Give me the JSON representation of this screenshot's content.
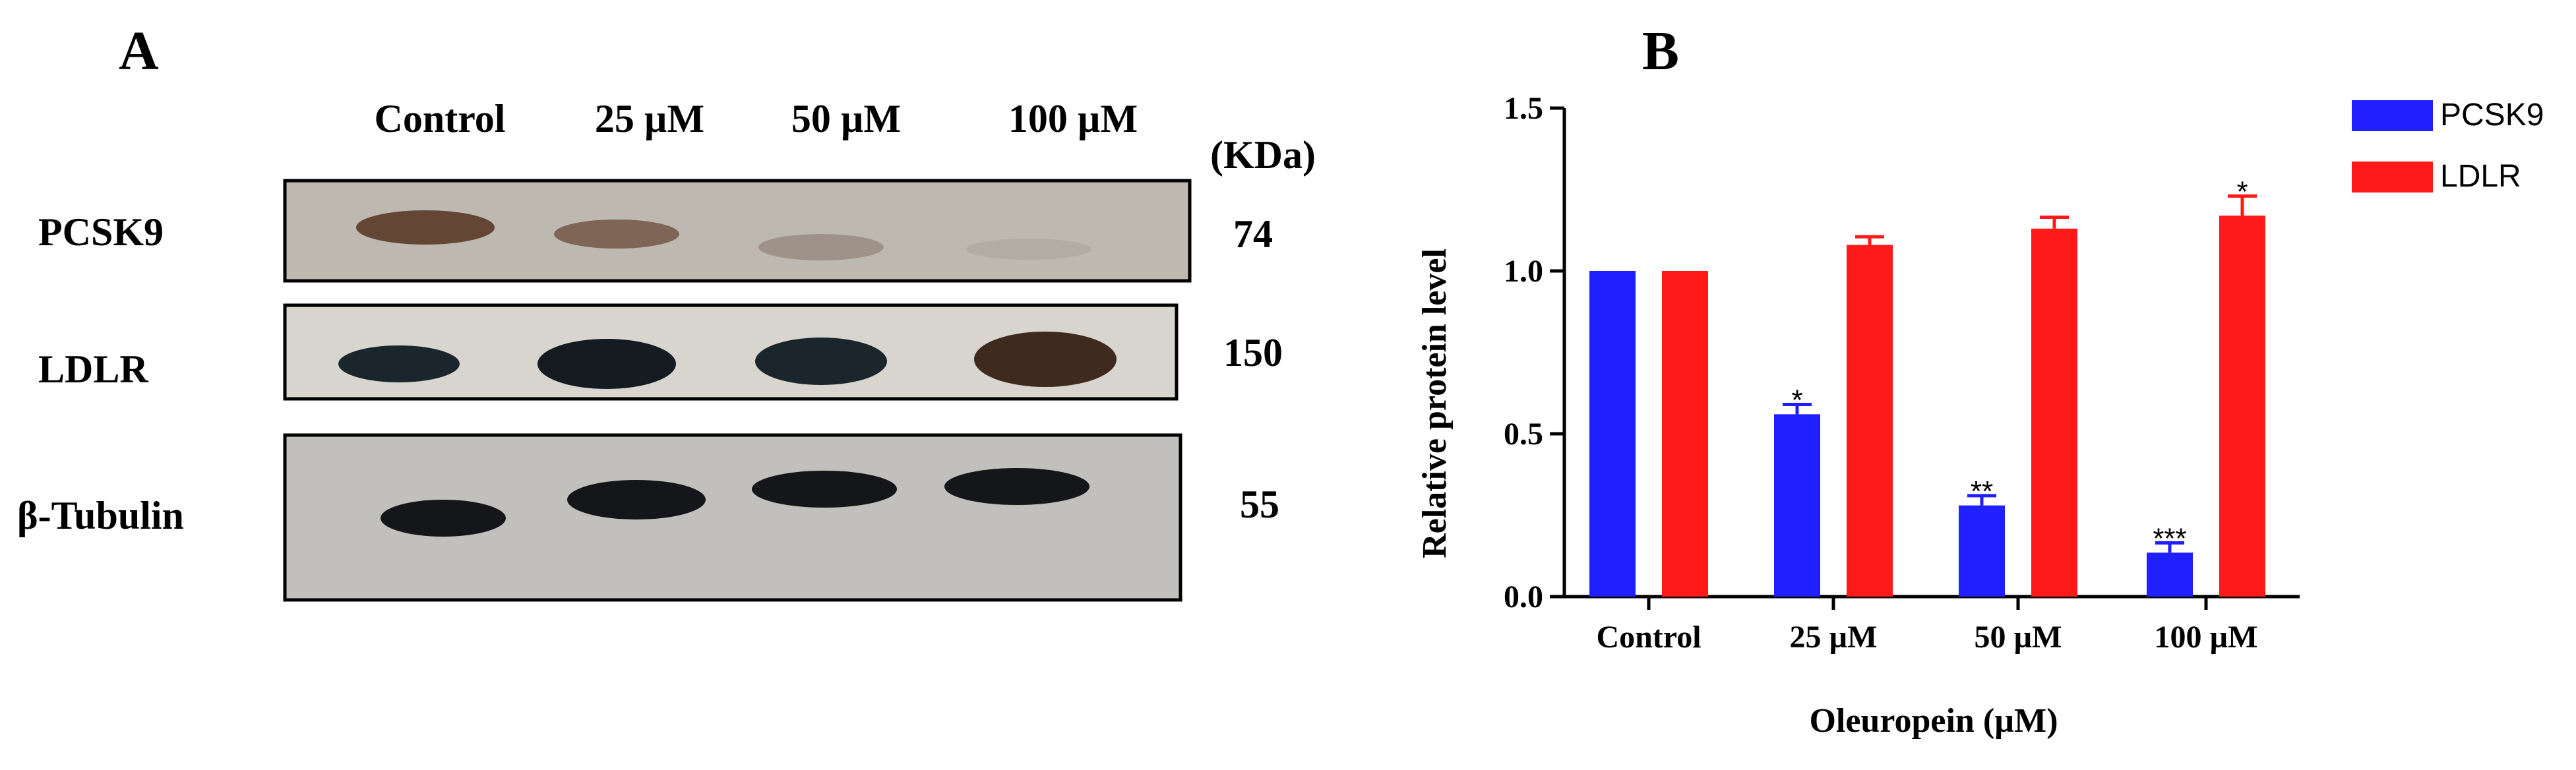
{
  "panel_a": {
    "letter": "A",
    "lanes": [
      "Control",
      "25 µM",
      "50 µM",
      "100 µM"
    ],
    "kda_header": "(KDa)",
    "rows": [
      {
        "label": "PCSK9",
        "kda": "74"
      },
      {
        "label": "LDLR",
        "kda": "150"
      },
      {
        "label": "β-Tubulin",
        "kda": "55"
      }
    ]
  },
  "panel_b": {
    "letter": "B"
  },
  "chart_data": {
    "type": "bar",
    "title": "",
    "xlabel": "Oleuropein (µM)",
    "ylabel": "Relative protein level",
    "categories": [
      "Control",
      "25 µM",
      "50 µM",
      "100 µM"
    ],
    "ylim": [
      0,
      1.5
    ],
    "yticks": [
      "0.0",
      "0.5",
      "1.0",
      "1.5"
    ],
    "series": [
      {
        "name": "PCSK9",
        "color": "#1f1fff",
        "values": [
          1.0,
          0.56,
          0.28,
          0.135
        ],
        "errors": [
          0,
          0.03,
          0.03,
          0.03
        ],
        "significance": [
          "",
          "*",
          "**",
          "***"
        ]
      },
      {
        "name": "LDLR",
        "color": "#ff1a1a",
        "values": [
          1.0,
          1.08,
          1.13,
          1.17
        ],
        "errors": [
          0,
          0.025,
          0.035,
          0.06
        ],
        "significance": [
          "",
          "",
          "",
          "*"
        ]
      }
    ],
    "legend_position": "top-right"
  }
}
